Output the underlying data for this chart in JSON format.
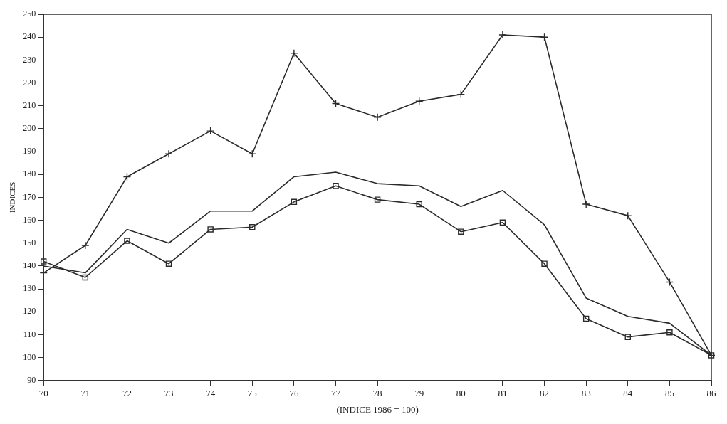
{
  "chart_data": {
    "type": "line",
    "xlabel": "(INDICE 1986 = 100)",
    "ylabel": "INDICES",
    "categories": [
      "70",
      "71",
      "72",
      "73",
      "74",
      "75",
      "76",
      "77",
      "78",
      "79",
      "80",
      "81",
      "82",
      "83",
      "84",
      "85",
      "86"
    ],
    "series": [
      {
        "color": "#2a2a2a",
        "marker": "cross",
        "values": [
          137,
          149,
          179,
          189,
          199,
          189,
          233,
          211,
          205,
          212,
          215,
          241,
          240,
          167,
          162,
          133,
          101
        ]
      },
      {
        "color": "#2a2a2a",
        "marker": "none",
        "values": [
          140,
          137,
          156,
          150,
          164,
          164,
          179,
          181,
          176,
          175,
          166,
          173,
          158,
          126,
          118,
          115,
          101
        ]
      },
      {
        "color": "#2a2a2a",
        "marker": "square",
        "values": [
          142,
          135,
          151,
          141,
          156,
          157,
          168,
          175,
          169,
          167,
          155,
          159,
          141,
          117,
          109,
          111,
          101
        ]
      }
    ],
    "ylim": [
      90,
      250
    ],
    "yticks": [
      90,
      100,
      110,
      120,
      130,
      140,
      150,
      160,
      170,
      180,
      190,
      200,
      210,
      220,
      230,
      240,
      250
    ],
    "grid": false,
    "legend": false,
    "line_style": "solid"
  }
}
